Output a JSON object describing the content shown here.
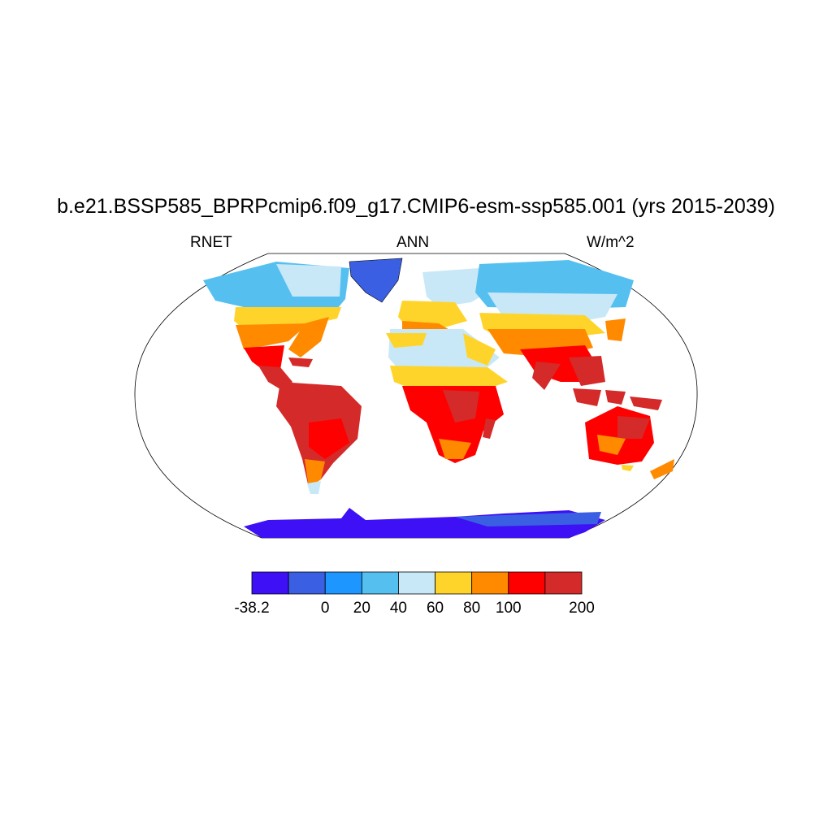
{
  "title": "b.e21.BSSP585_BPRPcmip6.f09_g17.CMIP6-esm-ssp585.001 (yrs 2015-2039)",
  "subtitle_left": "RNET",
  "subtitle_center": "ANN",
  "subtitle_right": "W/m^2",
  "colorbar": {
    "colors": [
      "#3d10f5",
      "#3a5fe3",
      "#1e96ff",
      "#55c0f0",
      "#c8e8f8",
      "#ffd42a",
      "#ff8a00",
      "#ff0000",
      "#d42a2a"
    ],
    "tick_labels": [
      "-38.2",
      "0",
      "20",
      "40",
      "60",
      "80",
      "100",
      "200"
    ]
  }
}
